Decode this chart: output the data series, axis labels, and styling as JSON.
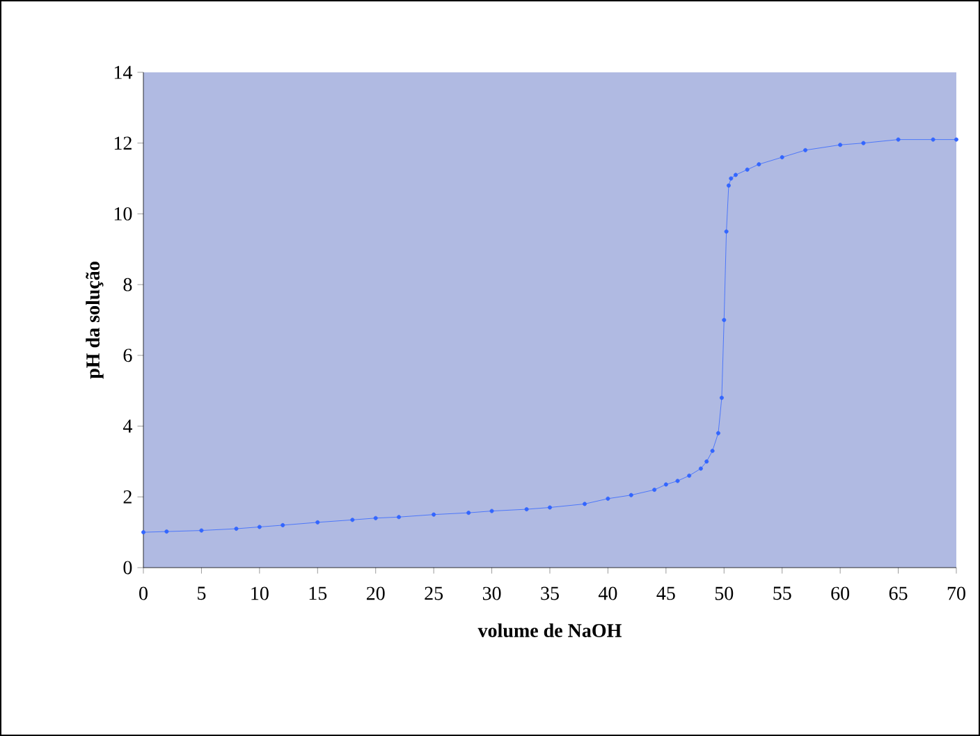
{
  "chart_data": {
    "type": "line",
    "xlabel": "volume de NaOH",
    "ylabel": "pH da solução",
    "x": [
      0,
      2,
      5,
      8,
      10,
      12,
      15,
      18,
      20,
      22,
      25,
      28,
      30,
      33,
      35,
      38,
      40,
      42,
      44,
      45,
      46,
      47,
      48,
      48.5,
      49,
      49.5,
      49.8,
      50,
      50.2,
      50.4,
      50.6,
      51,
      52,
      53,
      55,
      57,
      60,
      62,
      65,
      68,
      70
    ],
    "series": [
      {
        "color": "#3366ff",
        "values": [
          1.0,
          1.02,
          1.05,
          1.1,
          1.15,
          1.2,
          1.28,
          1.35,
          1.4,
          1.43,
          1.5,
          1.55,
          1.6,
          1.65,
          1.7,
          1.8,
          1.95,
          2.05,
          2.2,
          2.35,
          2.45,
          2.6,
          2.8,
          3.0,
          3.3,
          3.8,
          4.8,
          7.0,
          9.5,
          10.8,
          11.0,
          11.1,
          11.25,
          11.4,
          11.6,
          11.8,
          11.95,
          12.0,
          12.1,
          12.1,
          12.1
        ]
      }
    ],
    "xlim": [
      0,
      70
    ],
    "xticks": [
      0,
      5,
      10,
      15,
      20,
      25,
      30,
      35,
      40,
      45,
      50,
      55,
      60,
      65,
      70
    ],
    "ylim": [
      0,
      14
    ],
    "yticks": [
      0,
      2,
      4,
      6,
      8,
      10,
      12,
      14
    ],
    "marker": "circle",
    "line_style": "solid",
    "grid": false
  }
}
